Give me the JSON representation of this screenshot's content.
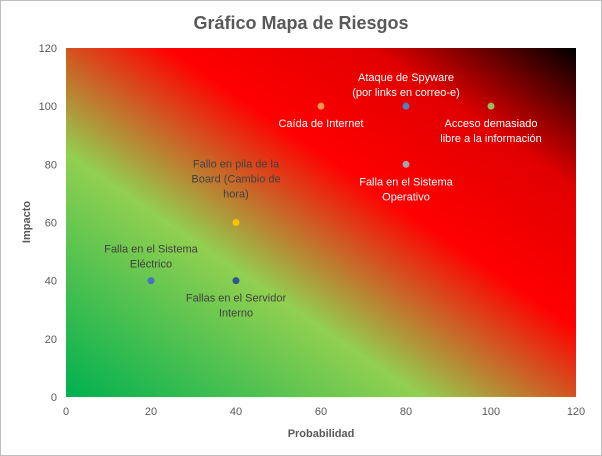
{
  "chart_data": {
    "type": "scatter",
    "title": "Gráfico Mapa de Riesgos",
    "xlabel": "Probabilidad",
    "ylabel": "Impacto",
    "xlim": [
      0,
      120
    ],
    "ylim": [
      0,
      120
    ],
    "xticks": [
      0,
      20,
      40,
      60,
      80,
      100,
      120
    ],
    "yticks": [
      0,
      20,
      40,
      60,
      80,
      100,
      120
    ],
    "grid": false,
    "legend": "none",
    "background": "gradient green (bottom-left) to red to black (top-right)",
    "colors": {
      "green": "#00b050",
      "yellow": "#92d050",
      "red": "#ff0000",
      "dark": "#000000",
      "label_light": "#ffffff",
      "label_dark": "#404040"
    },
    "points": [
      {
        "x": 80,
        "y": 100,
        "label_lines": [
          "Ataque de Spyware",
          "(por links en correo-e)"
        ],
        "color": "#4f81bd",
        "label_color": "#ffffff"
      },
      {
        "x": 60,
        "y": 100,
        "label_lines": [
          "Caída de Internet"
        ],
        "color": "#f79646",
        "label_color": "#ffffff"
      },
      {
        "x": 100,
        "y": 100,
        "label_lines": [
          "Acceso demasiado",
          "libre a la información"
        ],
        "color": "#9bbb59",
        "label_color": "#ffffff"
      },
      {
        "x": 80,
        "y": 80,
        "label_lines": [
          "Falla en el Sistema",
          "Operativo"
        ],
        "color": "#a5a5a5",
        "label_color": "#ffffff"
      },
      {
        "x": 40,
        "y": 60,
        "label_lines": [
          "Fallo en pila de la",
          "Board (Cambio de",
          "hora)"
        ],
        "color": "#ffc000",
        "label_color": "#404040"
      },
      {
        "x": 20,
        "y": 40,
        "label_lines": [
          "Falla en el Sistema",
          "Eléctrico"
        ],
        "color": "#4472c4",
        "label_color": "#404040"
      },
      {
        "x": 40,
        "y": 40,
        "label_lines": [
          "Fallas en el Servidor",
          "Interno"
        ],
        "color": "#2e5597",
        "label_color": "#404040"
      }
    ]
  }
}
